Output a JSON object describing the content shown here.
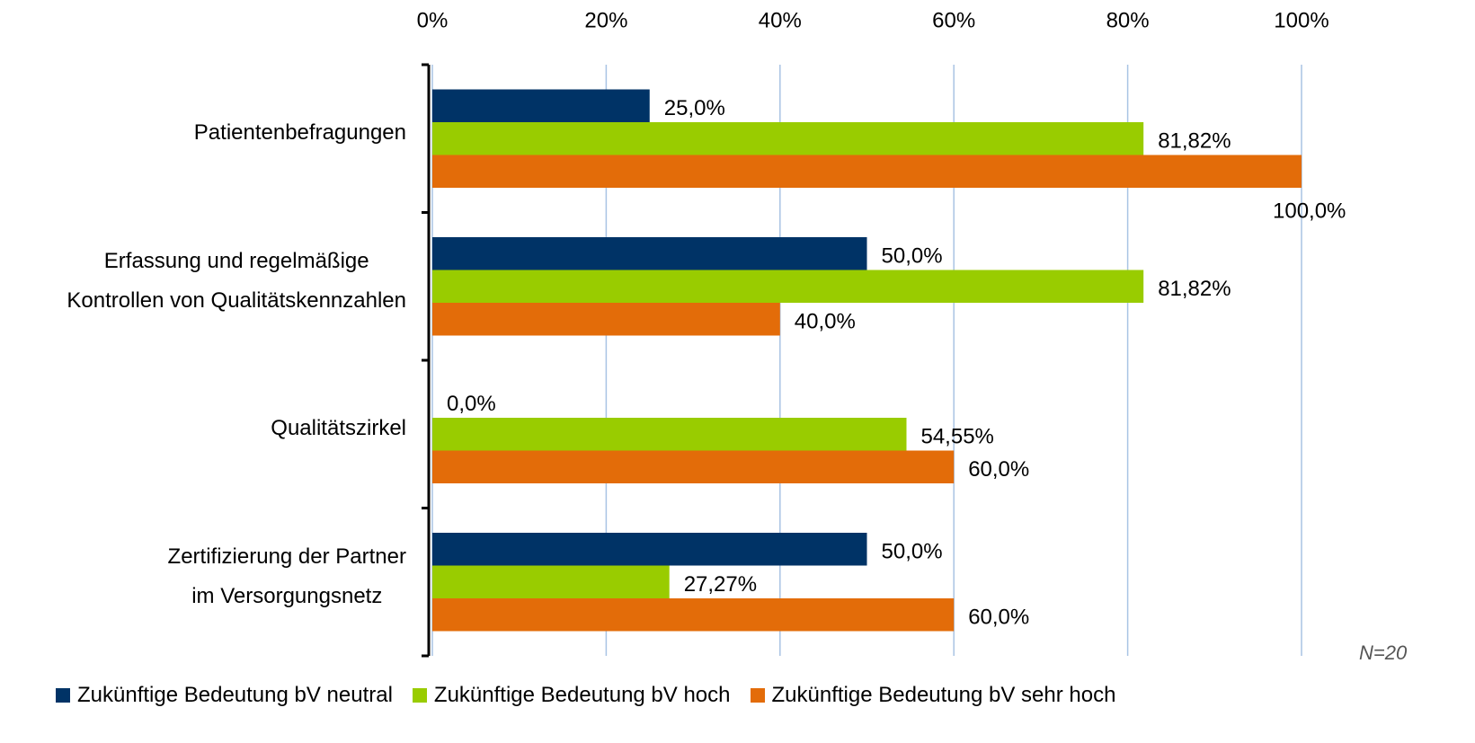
{
  "chart_data": {
    "type": "bar",
    "orientation": "horizontal",
    "categories": [
      "Patientenbefragungen",
      "Erfassung und regelmäßige\nKontrollen von Qualitätskennzahlen",
      "Qualitätszirkel",
      "Zertifizierung der Partner\nim Versorgungsnetz"
    ],
    "series": [
      {
        "name": "Zukünftige Bedeutung bV neutral",
        "color": "#003366",
        "values": [
          25.0,
          50.0,
          0.0,
          50.0
        ],
        "value_labels": [
          "25,0%",
          "50,0%",
          "0,0%",
          "50,0%"
        ]
      },
      {
        "name": "Zukünftige Bedeutung bV hoch",
        "color": "#99cc00",
        "values": [
          81.82,
          81.82,
          54.55,
          27.27
        ],
        "value_labels": [
          "81,82%",
          "81,82%",
          "54,55%",
          "27,27%"
        ]
      },
      {
        "name": "Zukünftige Bedeutung bV sehr hoch",
        "color": "#e36c09",
        "values": [
          100.0,
          40.0,
          60.0,
          60.0
        ],
        "value_labels": [
          "100,0%",
          "40,0%",
          "60,0%",
          "60,0%"
        ]
      }
    ],
    "xlim": [
      0,
      100
    ],
    "xticks": [
      {
        "value": 0,
        "label": "0%"
      },
      {
        "value": 20,
        "label": "20%"
      },
      {
        "value": 40,
        "label": "40%"
      },
      {
        "value": 60,
        "label": "60%"
      },
      {
        "value": 80,
        "label": "80%"
      },
      {
        "value": 100,
        "label": "100%"
      }
    ],
    "grid": true,
    "legend": "bottom",
    "annotation": "N=20"
  }
}
